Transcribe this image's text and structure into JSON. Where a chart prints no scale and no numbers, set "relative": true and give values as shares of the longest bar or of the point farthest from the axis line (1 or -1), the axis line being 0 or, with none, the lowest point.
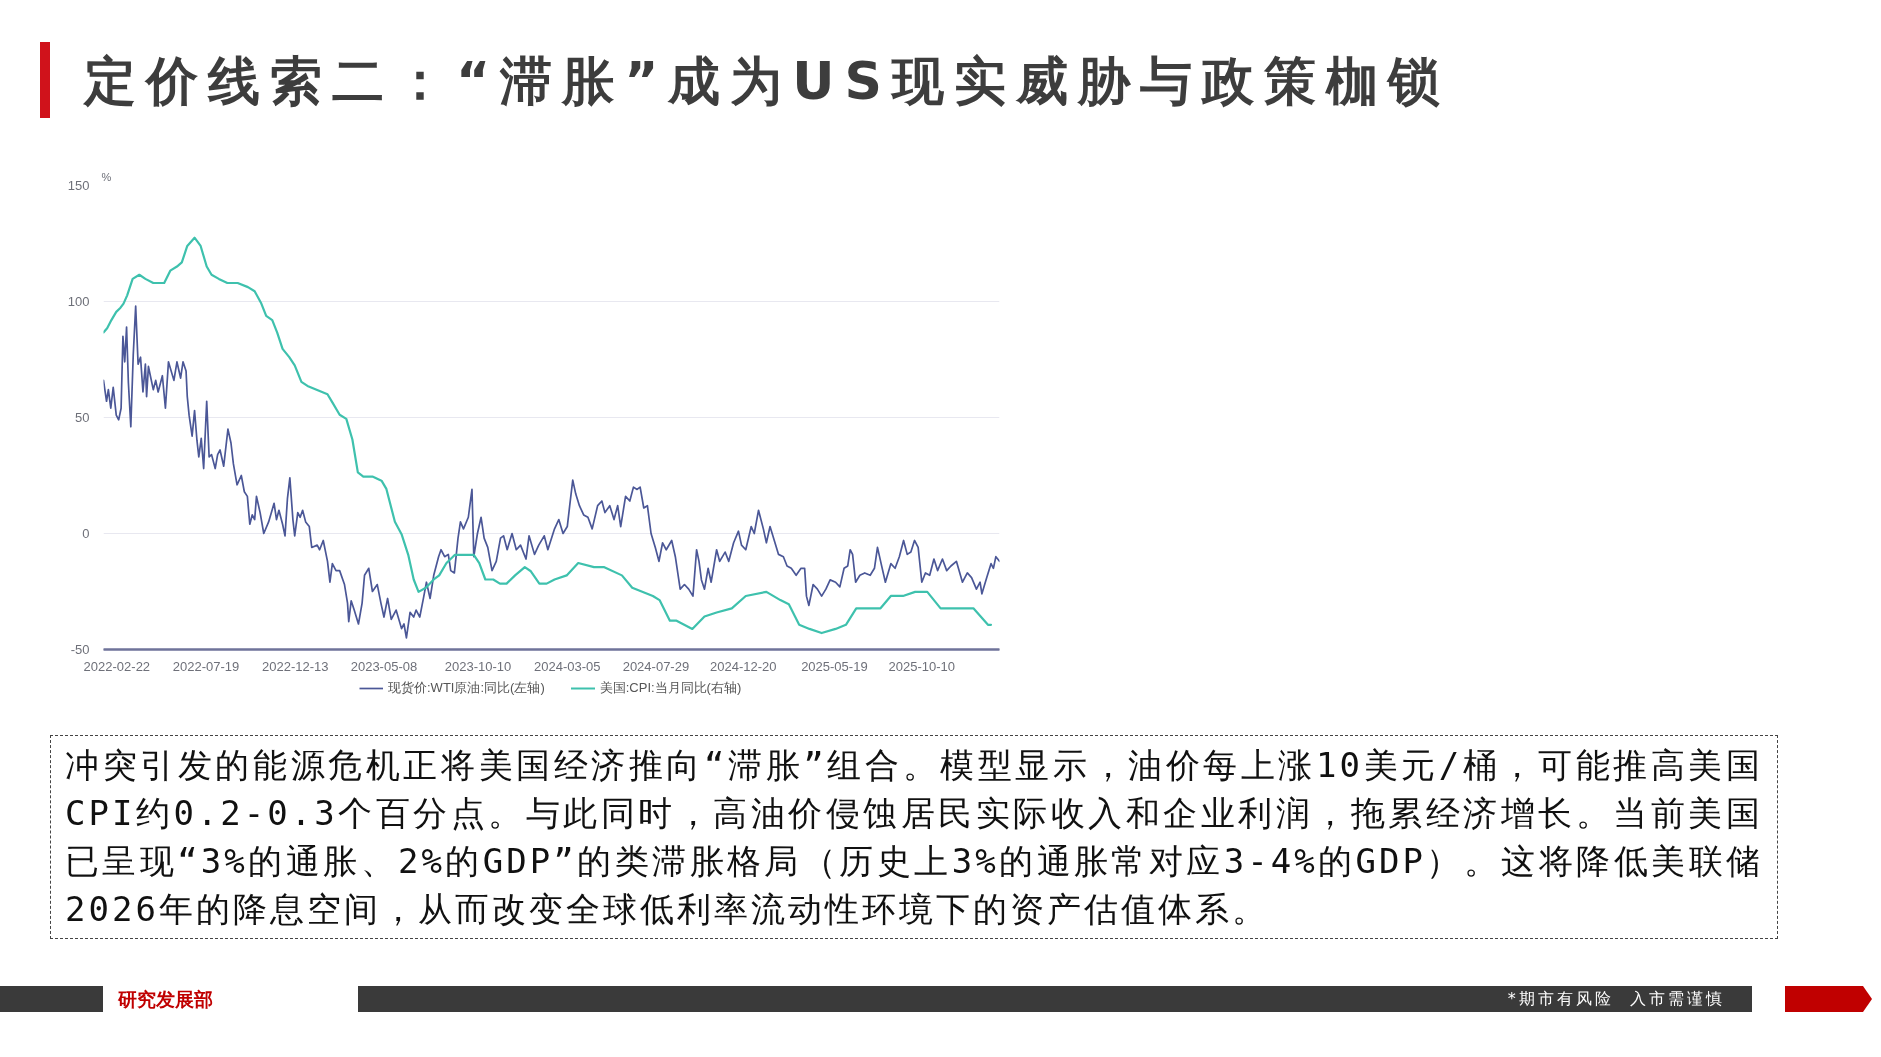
{
  "chart_data": [
    {
      "type": "line",
      "title": "定价线索二：“滞胀”成为US现实威胁与政策枷锁",
      "ylabel": "%",
      "xlim": [
        "2022-01-31",
        "2026-02-15"
      ],
      "xticks": [
        "2022-02-22",
        "2022-07-19",
        "2022-12-13",
        "2023-05-08",
        "2023-10-10",
        "2024-03-05",
        "2024-07-29",
        "2024-12-20",
        "2025-05-19",
        "2025-10-10"
      ],
      "ylim": [
        -50,
        150
      ],
      "yticks": [
        -50,
        0,
        50,
        100,
        150
      ],
      "grid": "y",
      "legend": "bottom",
      "series": [
        {
          "name": "现货价:WTI原油:同比(左轴)",
          "color": "#4b5797",
          "x": [
            "2022-01-31",
            "2022-02-05",
            "2022-02-08",
            "2022-02-12",
            "2022-02-16",
            "2022-02-21",
            "2022-02-25",
            "2022-03-01",
            "2022-03-04",
            "2022-03-07",
            "2022-03-10",
            "2022-03-13",
            "2022-03-17",
            "2022-03-21",
            "2022-03-25",
            "2022-03-29",
            "2022-04-02",
            "2022-04-06",
            "2022-04-10",
            "2022-04-12",
            "2022-04-15",
            "2022-04-23",
            "2022-04-27",
            "2022-05-01",
            "2022-05-08",
            "2022-05-13",
            "2022-05-18",
            "2022-05-27",
            "2022-06-01",
            "2022-06-07",
            "2022-06-11",
            "2022-06-16",
            "2022-06-18",
            "2022-06-21",
            "2022-06-26",
            "2022-06-30",
            "2022-07-04",
            "2022-07-07",
            "2022-07-11",
            "2022-07-15",
            "2022-07-20",
            "2022-07-24",
            "2022-07-28",
            "2022-08-03",
            "2022-08-07",
            "2022-08-11",
            "2022-08-17",
            "2022-08-24",
            "2022-08-29",
            "2022-09-02",
            "2022-09-08",
            "2022-09-15",
            "2022-09-20",
            "2022-09-25",
            "2022-09-29",
            "2022-10-03",
            "2022-10-07",
            "2022-10-10",
            "2022-10-16",
            "2022-10-22",
            "2022-10-30",
            "2022-11-08",
            "2022-11-12",
            "2022-11-16",
            "2022-11-22",
            "2022-11-26",
            "2022-11-30",
            "2022-12-04",
            "2022-12-09",
            "2022-12-12",
            "2022-12-17",
            "2022-12-21",
            "2022-12-25",
            "2022-12-30",
            "2023-01-05",
            "2023-01-09",
            "2023-01-18",
            "2023-01-22",
            "2023-01-28",
            "2023-02-04",
            "2023-02-08",
            "2023-02-12",
            "2023-02-18",
            "2023-02-24",
            "2023-03-04",
            "2023-03-09",
            "2023-03-11",
            "2023-03-15",
            "2023-03-20",
            "2023-03-27",
            "2023-04-02",
            "2023-04-06",
            "2023-04-13",
            "2023-04-19",
            "2023-04-27",
            "2023-05-03",
            "2023-05-08",
            "2023-05-14",
            "2023-05-20",
            "2023-05-28",
            "2023-06-06",
            "2023-06-10",
            "2023-06-14",
            "2023-06-20",
            "2023-06-26",
            "2023-06-30",
            "2023-07-06",
            "2023-07-12",
            "2023-07-17",
            "2023-07-23",
            "2023-07-29",
            "2023-08-06",
            "2023-08-10",
            "2023-08-16",
            "2023-08-22",
            "2023-08-26",
            "2023-09-01",
            "2023-09-07",
            "2023-09-11",
            "2023-09-16",
            "2023-09-24",
            "2023-09-30",
            "2023-10-03",
            "2023-10-09",
            "2023-10-15",
            "2023-10-20",
            "2023-10-26",
            "2023-11-02",
            "2023-11-09",
            "2023-11-16",
            "2023-11-21",
            "2023-11-27",
            "2023-12-05",
            "2023-12-12",
            "2023-12-19",
            "2023-12-28",
            "2024-01-02",
            "2024-01-11",
            "2024-01-18",
            "2024-01-27",
            "2024-02-02",
            "2024-02-13",
            "2024-02-20",
            "2024-02-27",
            "2024-03-05",
            "2024-03-09",
            "2024-03-14",
            "2024-03-19",
            "2024-03-25",
            "2024-04-01",
            "2024-04-08",
            "2024-04-15",
            "2024-04-24",
            "2024-05-01",
            "2024-05-06",
            "2024-05-14",
            "2024-05-21",
            "2024-05-27",
            "2024-06-01",
            "2024-06-09",
            "2024-06-16",
            "2024-06-22",
            "2024-06-28",
            "2024-07-03",
            "2024-07-09",
            "2024-07-15",
            "2024-07-21",
            "2024-07-28",
            "2024-08-03",
            "2024-08-09",
            "2024-08-15",
            "2024-08-24",
            "2024-08-30",
            "2024-09-07",
            "2024-09-14",
            "2024-09-21",
            "2024-09-28",
            "2024-10-04",
            "2024-10-08",
            "2024-10-12",
            "2024-10-17",
            "2024-10-23",
            "2024-10-28",
            "2024-11-06",
            "2024-11-11",
            "2024-11-20",
            "2024-11-26",
            "2024-12-04",
            "2024-12-12",
            "2024-12-17",
            "2024-12-24",
            "2025-01-02",
            "2025-01-07",
            "2025-01-14",
            "2025-01-22",
            "2025-01-27",
            "2025-02-02",
            "2025-02-09",
            "2025-02-16",
            "2025-02-24",
            "2025-03-02",
            "2025-03-09",
            "2025-03-17",
            "2025-03-25",
            "2025-03-31",
            "2025-04-03",
            "2025-04-07",
            "2025-04-14",
            "2025-04-21",
            "2025-04-28",
            "2025-05-05",
            "2025-05-12",
            "2025-05-21",
            "2025-05-28",
            "2025-06-04",
            "2025-06-10",
            "2025-06-14",
            "2025-06-18",
            "2025-06-23",
            "2025-06-30",
            "2025-07-08",
            "2025-07-17",
            "2025-07-24",
            "2025-07-29",
            "2025-08-04",
            "2025-08-11",
            "2025-08-20",
            "2025-08-27",
            "2025-09-03",
            "2025-09-10",
            "2025-09-16",
            "2025-09-22",
            "2025-09-28",
            "2025-10-04",
            "2025-10-10",
            "2025-10-16",
            "2025-10-23",
            "2025-10-30",
            "2025-11-05",
            "2025-11-13",
            "2025-11-20",
            "2025-11-27",
            "2025-12-06",
            "2025-12-16",
            "2025-12-24",
            "2025-12-31",
            "2026-01-08",
            "2026-01-14",
            "2026-01-17",
            "2026-01-25",
            "2026-02-01",
            "2026-02-05",
            "2026-02-09",
            "2026-02-15"
          ],
          "values": [
            66,
            57,
            62,
            54,
            63,
            51,
            49,
            54,
            85,
            74,
            89,
            65,
            46,
            77,
            98,
            73,
            76,
            61,
            73,
            59,
            72,
            62,
            66,
            61,
            68,
            54,
            74,
            66,
            74,
            67,
            74,
            70,
            59,
            51,
            42,
            53,
            40,
            33,
            41,
            28,
            57,
            33,
            34,
            28,
            34,
            36,
            29,
            45,
            39,
            30,
            21,
            25,
            18,
            16,
            4,
            8,
            6,
            16,
            9,
            0,
            5,
            13,
            6,
            10,
            4,
            -1,
            15,
            24,
            6,
            -1,
            9,
            7,
            10,
            5,
            3,
            -6,
            -5,
            -7,
            -3,
            -12,
            -21,
            -13,
            -16,
            -16,
            -22,
            -30,
            -38,
            -29,
            -33,
            -39,
            -30,
            -18,
            -15,
            -25,
            -22,
            -30,
            -36,
            -28,
            -37,
            -33,
            -41,
            -39,
            -45,
            -34,
            -36,
            -33,
            -36,
            -28,
            -21,
            -28,
            -18,
            -10,
            -7,
            -10,
            -9,
            -16,
            -17,
            -2,
            5,
            2,
            7,
            19,
            -10,
            0,
            7,
            -2,
            -6,
            -16,
            -12,
            -2,
            -1,
            -7,
            0,
            -7,
            -5,
            -11,
            -1,
            -9,
            -5,
            -1,
            -7,
            2,
            6,
            0,
            3,
            12,
            23,
            17,
            12,
            8,
            7,
            2,
            12,
            14,
            9,
            12,
            6,
            12,
            3,
            16,
            14,
            20,
            19,
            20,
            11,
            12,
            0,
            -6,
            -12,
            -4,
            -7,
            -3,
            -10,
            -24,
            -22,
            -24,
            -27,
            -7,
            -12,
            -20,
            -24,
            -15,
            -21,
            -7,
            -12,
            -8,
            -12,
            -4,
            1,
            -5,
            -7,
            3,
            0,
            10,
            2,
            -4,
            3,
            -3,
            -9,
            -10,
            -14,
            -15,
            -18,
            -15,
            -15,
            -27,
            -31,
            -22,
            -24,
            -27,
            -24,
            -20,
            -21,
            -23,
            -15,
            -14,
            -7,
            -9,
            -21,
            -18,
            -17,
            -18,
            -15,
            -6,
            -13,
            -21,
            -13,
            -15,
            -10,
            -3,
            -9,
            -8,
            -3,
            -6,
            -21,
            -17,
            -18,
            -11,
            -16,
            -11,
            -16,
            -14,
            -12,
            -21,
            -17,
            -19,
            -24,
            -21,
            -26,
            -19,
            -13,
            -15,
            -10,
            -12
          ]
        }
      ],
      "annotations": [
        "冲突引发的能源危机正将美国经济推向“滞胀”组合。模型显示，油价每上涨10美元/桶，可能推高美国CPI约0.2-0.3个百分点。与此同时，高油价侵蚀居民实际收入和企业利润，拖累经济增长。当前美国已呈现“3%的通胀、2%的GDP”的类滞胀格局（历史上3%的通胀常对应3-4%的GDP）。这将降低美联储2026年的降息空间，从而改变全球低利率流动性环境下的资产估值体系。",
        "研究发展部",
        "*期市有风险  入市需谨慎"
      ]
    },
    {
      "type": "line",
      "relative": true,
      "xlim": [
        "2022-01-31",
        "2026-02-15"
      ],
      "legend": "bottom",
      "series": [
        {
          "name": "美国:CPI:当月同比(右轴)",
          "color": "#3ec1ad",
          "x": [
            "2022-01-31",
            "2022-02-06",
            "2022-02-13",
            "2022-02-21",
            "2022-02-28",
            "2022-03-05",
            "2022-03-11",
            "2022-03-20",
            "2022-03-31",
            "2022-04-10",
            "2022-04-23",
            "2022-05-04",
            "2022-05-11",
            "2022-05-21",
            "2022-06-01",
            "2022-06-09",
            "2022-06-18",
            "2022-06-30",
            "2022-07-10",
            "2022-07-20",
            "2022-07-28",
            "2022-08-09",
            "2022-08-23",
            "2022-09-09",
            "2022-09-26",
            "2022-10-07",
            "2022-10-18",
            "2022-10-26",
            "2022-11-05",
            "2022-11-13",
            "2022-11-22",
            "2022-12-03",
            "2022-12-12",
            "2022-12-23",
            "2023-01-02",
            "2023-01-18",
            "2023-02-04",
            "2023-02-12",
            "2023-02-24",
            "2023-03-07",
            "2023-03-17",
            "2023-03-26",
            "2023-04-04",
            "2023-04-19",
            "2023-05-04",
            "2023-05-12",
            "2023-05-26",
            "2023-06-06",
            "2023-06-17",
            "2023-06-26",
            "2023-07-04",
            "2023-07-16",
            "2023-07-29",
            "2023-08-07",
            "2023-08-19",
            "2023-09-02",
            "2023-09-16",
            "2023-10-03",
            "2023-10-12",
            "2023-10-22",
            "2023-11-04",
            "2023-11-15",
            "2023-11-26",
            "2023-12-10",
            "2023-12-26",
            "2024-01-05",
            "2024-01-19",
            "2024-01-31",
            "2024-02-13",
            "2024-03-04",
            "2024-03-23",
            "2024-04-18",
            "2024-05-05",
            "2024-06-03",
            "2024-06-20",
            "2024-07-24",
            "2024-08-04",
            "2024-08-21",
            "2024-09-01",
            "2024-09-27",
            "2024-10-17",
            "2024-11-06",
            "2024-12-01",
            "2024-12-24",
            "2025-01-27",
            "2025-02-19",
            "2025-03-05",
            "2025-03-22",
            "2025-04-08",
            "2025-04-28",
            "2025-05-21",
            "2025-06-07",
            "2025-06-24",
            "2025-08-03",
            "2025-08-20",
            "2025-09-09",
            "2025-09-29",
            "2025-10-19",
            "2025-11-10",
            "2025-11-30",
            "2026-01-03",
            "2026-01-15",
            "2026-01-27",
            "2026-02-01"
          ],
          "values": [
            0.77,
            0.78,
            0.8,
            0.82,
            0.83,
            0.84,
            0.86,
            0.9,
            0.91,
            0.9,
            0.89,
            0.89,
            0.89,
            0.92,
            0.93,
            0.94,
            0.98,
            1,
            0.98,
            0.93,
            0.91,
            0.9,
            0.89,
            0.89,
            0.88,
            0.87,
            0.84,
            0.81,
            0.8,
            0.77,
            0.73,
            0.71,
            0.69,
            0.65,
            0.64,
            0.63,
            0.62,
            0.6,
            0.57,
            0.56,
            0.51,
            0.43,
            0.42,
            0.42,
            0.41,
            0.39,
            0.31,
            0.28,
            0.23,
            0.17,
            0.14,
            0.15,
            0.17,
            0.18,
            0.21,
            0.23,
            0.23,
            0.23,
            0.21,
            0.17,
            0.17,
            0.16,
            0.16,
            0.18,
            0.2,
            0.19,
            0.16,
            0.16,
            0.17,
            0.18,
            0.21,
            0.2,
            0.2,
            0.18,
            0.15,
            0.13,
            0.12,
            0.07,
            0.07,
            0.05,
            0.08,
            0.09,
            0.1,
            0.13,
            0.14,
            0.12,
            0.11,
            0.06,
            0.05,
            0.04,
            0.05,
            0.06,
            0.1,
            0.1,
            0.13,
            0.13,
            0.14,
            0.14,
            0.1,
            0.1,
            0.1,
            0.08,
            0.06,
            0.06
          ]
        }
      ]
    }
  ]
}
